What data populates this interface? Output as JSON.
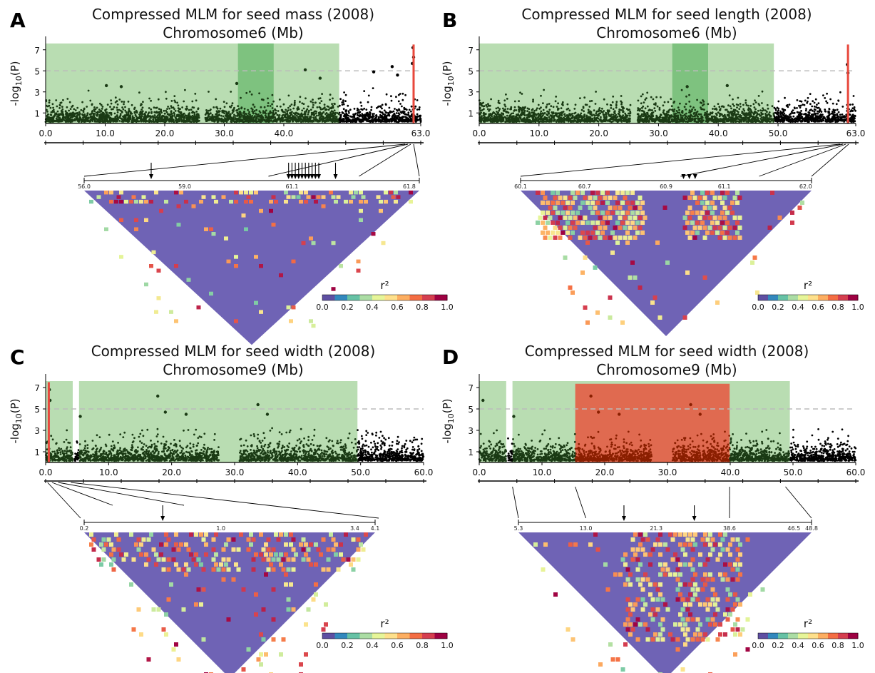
{
  "chart_data": [
    {
      "panel": "A",
      "type": "scatter",
      "title": "Compressed MLM for seed mass (2008)",
      "subtitle": "Chromosome6 (Mb)",
      "ylabel": "-log10(P)",
      "ylabel_main": "-log",
      "ylabel_sub": "10",
      "ylabel_tail": "(P)",
      "xlim": [
        0,
        63
      ],
      "ylim": [
        0,
        8
      ],
      "yticks": [
        "1",
        "3",
        "5",
        "7"
      ],
      "ytick_values": [
        1,
        3,
        5,
        7
      ],
      "xticks": [
        "0.0",
        "10.0",
        "20.0",
        "30.0",
        "40.0",
        "63.0"
      ],
      "xtick_values": [
        0,
        10,
        20,
        30,
        40,
        63
      ],
      "threshold": 5,
      "green_regions": [
        [
          0,
          49.3
        ]
      ],
      "dark_green_regions": [
        [
          32.3,
          38.3
        ]
      ],
      "red_regions": [],
      "red_line": 61.8,
      "gaps": [
        [
          25.8,
          26.8
        ]
      ],
      "peaks": [
        [
          10.2,
          3.6
        ],
        [
          12.7,
          3.5
        ],
        [
          32.1,
          3.8
        ],
        [
          43.6,
          5.1
        ],
        [
          46.1,
          4.3
        ],
        [
          55.1,
          4.9
        ],
        [
          58.2,
          5.4
        ],
        [
          59.1,
          4.6
        ],
        [
          61.7,
          7.2
        ],
        [
          61.8,
          6.3
        ],
        [
          61.6,
          5.7
        ]
      ],
      "ld": {
        "labels": [
          "56.0",
          "59.0",
          "61.1",
          "61.8"
        ],
        "label_pos": [
          0,
          0.3,
          0.62,
          0.97
        ],
        "arrows": [
          0.2,
          0.61,
          0.62,
          0.63,
          0.64,
          0.65,
          0.66,
          0.67,
          0.68,
          0.69,
          0.7,
          0.75
        ],
        "density": "sparse"
      },
      "colorbar": {
        "label": "r²",
        "ticks": [
          "0.0",
          "0.2",
          "0.4",
          "0.6",
          "0.8",
          "1.0"
        ]
      }
    },
    {
      "panel": "B",
      "type": "scatter",
      "title": "Compressed MLM for seed length (2008)",
      "subtitle": "Chromosome6 (Mb)",
      "ylabel": "-log10(P)",
      "ylabel_main": "-log",
      "ylabel_sub": "10",
      "ylabel_tail": "(P)",
      "xlim": [
        0,
        63
      ],
      "ylim": [
        0,
        8
      ],
      "yticks": [
        "1",
        "3",
        "5",
        "7"
      ],
      "ytick_values": [
        1,
        3,
        5,
        7
      ],
      "xticks": [
        "0.0",
        "10.0",
        "20.0",
        "30.0",
        "40.0",
        "50.0",
        "63.0"
      ],
      "xtick_values": [
        0,
        10,
        20,
        30,
        40,
        50,
        63
      ],
      "threshold": 5,
      "green_regions": [
        [
          0,
          49.3
        ]
      ],
      "dark_green_regions": [
        [
          32.3,
          38.3
        ]
      ],
      "red_regions": [],
      "red_line": 61.7,
      "gaps": [
        [
          25.3,
          26.5
        ]
      ],
      "peaks": [
        [
          34.8,
          3.5
        ],
        [
          41.5,
          3.6
        ],
        [
          61.6,
          5.6
        ],
        [
          61.7,
          4.8
        ]
      ],
      "ld": {
        "labels": [
          "60.1",
          "60.7",
          "60.9",
          "61.1",
          "62.0"
        ],
        "label_pos": [
          0,
          0.22,
          0.5,
          0.7,
          0.98
        ],
        "arrows": [
          0.56,
          0.58,
          0.6
        ],
        "density": "blocky"
      },
      "colorbar": {
        "label": "r²",
        "ticks": [
          "0.0",
          "0.2",
          "0.4",
          "0.6",
          "0.8",
          "1.0"
        ]
      }
    },
    {
      "panel": "C",
      "type": "scatter",
      "title": "Compressed MLM for seed width (2008)",
      "subtitle": "Chromosome9 (Mb)",
      "ylabel": "-log10(P)",
      "ylabel_main": "-log",
      "ylabel_sub": "10",
      "ylabel_tail": "(P)",
      "xlim": [
        0,
        60
      ],
      "ylim": [
        0,
        8
      ],
      "yticks": [
        "1",
        "3",
        "5",
        "7"
      ],
      "ytick_values": [
        1,
        3,
        5,
        7
      ],
      "xticks": [
        "0.0",
        "10.0",
        "20.0",
        "30.0",
        "40.0",
        "50.0",
        "60.0"
      ],
      "xtick_values": [
        0,
        10,
        20,
        30,
        40,
        50,
        60
      ],
      "threshold": 5,
      "green_regions": [
        [
          0,
          4.3
        ],
        [
          5.3,
          49.5
        ]
      ],
      "dark_green_regions": [],
      "red_regions": [],
      "red_line": 0.5,
      "gaps": [
        [
          4.3,
          4.6
        ],
        [
          27.5,
          30.8
        ]
      ],
      "peaks": [
        [
          0.6,
          6.8
        ],
        [
          0.7,
          5.8
        ],
        [
          17.8,
          6.2
        ],
        [
          19.0,
          4.7
        ],
        [
          22.3,
          4.5
        ],
        [
          33.7,
          5.4
        ],
        [
          35.2,
          4.5
        ],
        [
          5.5,
          4.3
        ]
      ],
      "ld": {
        "labels": [
          "0.2",
          "1.0",
          "3.4",
          "4.1"
        ],
        "label_pos": [
          0,
          0.47,
          0.93,
          1.0
        ],
        "arrows": [
          0.27
        ],
        "density": "medium"
      },
      "colorbar": {
        "label": "r²",
        "ticks": [
          "0.0",
          "0.2",
          "0.4",
          "0.6",
          "0.8",
          "1.0"
        ]
      }
    },
    {
      "panel": "D",
      "type": "scatter",
      "title": "Compressed MLM for seed width (2008)",
      "subtitle": "Chromosome9 (Mb)",
      "ylabel": "-log10(P)",
      "ylabel_main": "-log",
      "ylabel_sub": "10",
      "ylabel_tail": "(P)",
      "xlim": [
        0,
        60
      ],
      "ylim": [
        0,
        8
      ],
      "yticks": [
        "1",
        "3",
        "5",
        "7"
      ],
      "ytick_values": [
        1,
        3,
        5,
        7
      ],
      "xticks": [
        "0.0",
        "10.0",
        "20.0",
        "30.0",
        "40.0",
        "50.0",
        "60.0"
      ],
      "xtick_values": [
        0,
        10,
        20,
        30,
        40,
        50,
        60
      ],
      "threshold": 5,
      "green_regions": [
        [
          0,
          4.3
        ],
        [
          5.3,
          49.5
        ]
      ],
      "dark_green_regions": [],
      "red_regions": [
        [
          15.3,
          39.9
        ]
      ],
      "red_line": null,
      "gaps": [
        [
          4.3,
          4.6
        ],
        [
          27.5,
          30.8
        ]
      ],
      "peaks": [
        [
          0.6,
          5.8
        ],
        [
          17.8,
          6.2
        ],
        [
          19.0,
          4.7
        ],
        [
          22.3,
          4.5
        ],
        [
          33.7,
          5.4
        ],
        [
          35.2,
          4.5
        ],
        [
          5.5,
          4.3
        ]
      ],
      "ld": {
        "labels": [
          "5.3",
          "13.0",
          "21.3",
          "38.6",
          "46.5",
          "48.8"
        ],
        "label_pos": [
          0,
          0.23,
          0.47,
          0.72,
          0.94,
          1.0
        ],
        "arrows": [
          0.36,
          0.6
        ],
        "density": "dense-center"
      },
      "colorbar": {
        "label": "r²",
        "ticks": [
          "0.0",
          "0.2",
          "0.4",
          "0.6",
          "0.8",
          "1.0"
        ]
      }
    }
  ],
  "colors": {
    "green_band": "#b9ddb2",
    "dark_green_band": "#7ec27f",
    "red_band": "#e06a50",
    "green_points": "#1a3a14",
    "black_points": "#000000",
    "red_points": "#8a1f00",
    "threshold": "#bbbbbb",
    "red_line": "#e8483c",
    "ld_background": "#6f63b5",
    "colormap": [
      "#5e4fa2",
      "#3288bd",
      "#66c2a5",
      "#abdda4",
      "#e6f598",
      "#fee08b",
      "#fdae61",
      "#f46d43",
      "#d53e4f",
      "#9e0142"
    ]
  }
}
